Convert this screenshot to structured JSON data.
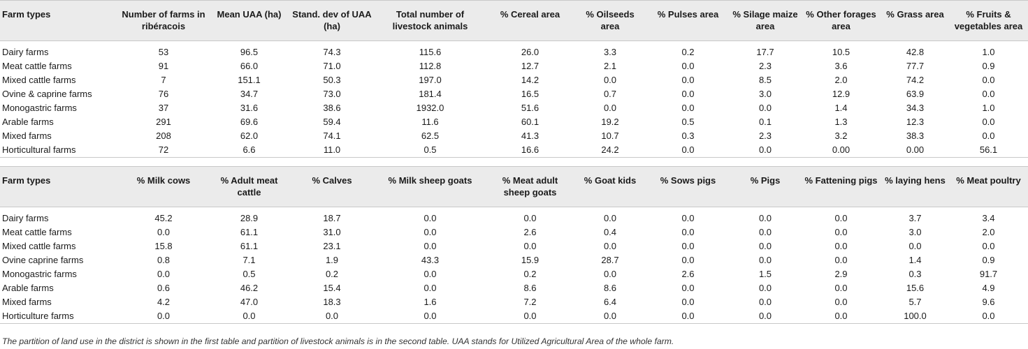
{
  "table1": {
    "headers": [
      "Farm types",
      "Number of farms in ribéracois",
      "Mean UAA (ha)",
      "Stand. dev of UAA (ha)",
      "Total number of livestock animals",
      "% Cereal area",
      "% Oilseeds area",
      "% Pulses area",
      "% Silage maize area",
      "% Other forages area",
      "% Grass area",
      "% Fruits & vegetables area"
    ],
    "rows": [
      [
        "Dairy farms",
        "53",
        "96.5",
        "74.3",
        "115.6",
        "26.0",
        "3.3",
        "0.2",
        "17.7",
        "10.5",
        "42.8",
        "1.0"
      ],
      [
        "Meat cattle farms",
        "91",
        "66.0",
        "71.0",
        "112.8",
        "12.7",
        "2.1",
        "0.0",
        "2.3",
        "3.6",
        "77.7",
        "0.9"
      ],
      [
        "Mixed cattle farms",
        "7",
        "151.1",
        "50.3",
        "197.0",
        "14.2",
        "0.0",
        "0.0",
        "8.5",
        "2.0",
        "74.2",
        "0.0"
      ],
      [
        "Ovine & caprine farms",
        "76",
        "34.7",
        "73.0",
        "181.4",
        "16.5",
        "0.7",
        "0.0",
        "3.0",
        "12.9",
        "63.9",
        "0.0"
      ],
      [
        "Monogastric farms",
        "37",
        "31.6",
        "38.6",
        "1932.0",
        "51.6",
        "0.0",
        "0.0",
        "0.0",
        "1.4",
        "34.3",
        "1.0"
      ],
      [
        "Arable farms",
        "291",
        "69.6",
        "59.4",
        "11.6",
        "60.1",
        "19.2",
        "0.5",
        "0.1",
        "1.3",
        "12.3",
        "0.0"
      ],
      [
        "Mixed farms",
        "208",
        "62.0",
        "74.1",
        "62.5",
        "41.3",
        "10.7",
        "0.3",
        "2.3",
        "3.2",
        "38.3",
        "0.0"
      ],
      [
        "Horticultural farms",
        "72",
        "6.6",
        "11.0",
        "0.5",
        "16.6",
        "24.2",
        "0.0",
        "0.0",
        "0.00",
        "0.00",
        "56.1"
      ]
    ]
  },
  "table2": {
    "headers": [
      "Farm types",
      "% Milk cows",
      "% Adult meat cattle",
      "% Calves",
      "% Milk sheep goats",
      "% Meat adult sheep goats",
      "% Goat kids",
      "% Sows pigs",
      "% Pigs",
      "% Fattening pigs",
      "% laying hens",
      "% Meat poultry"
    ],
    "rows": [
      [
        "Dairy farms",
        "45.2",
        "28.9",
        "18.7",
        "0.0",
        "0.0",
        "0.0",
        "0.0",
        "0.0",
        "0.0",
        "3.7",
        "3.4"
      ],
      [
        "Meat cattle farms",
        "0.0",
        "61.1",
        "31.0",
        "0.0",
        "2.6",
        "0.4",
        "0.0",
        "0.0",
        "0.0",
        "3.0",
        "2.0"
      ],
      [
        "Mixed cattle farms",
        "15.8",
        "61.1",
        "23.1",
        "0.0",
        "0.0",
        "0.0",
        "0.0",
        "0.0",
        "0.0",
        "0.0",
        "0.0"
      ],
      [
        "Ovine caprine farms",
        "0.8",
        "7.1",
        "1.9",
        "43.3",
        "15.9",
        "28.7",
        "0.0",
        "0.0",
        "0.0",
        "1.4",
        "0.9"
      ],
      [
        "Monogastric farms",
        "0.0",
        "0.5",
        "0.2",
        "0.0",
        "0.2",
        "0.0",
        "2.6",
        "1.5",
        "2.9",
        "0.3",
        "91.7"
      ],
      [
        "Arable farms",
        "0.6",
        "46.2",
        "15.4",
        "0.0",
        "8.6",
        "8.6",
        "0.0",
        "0.0",
        "0.0",
        "15.6",
        "4.9"
      ],
      [
        "Mixed farms",
        "4.2",
        "47.0",
        "18.3",
        "1.6",
        "7.2",
        "6.4",
        "0.0",
        "0.0",
        "0.0",
        "5.7",
        "9.6"
      ],
      [
        "Horticulture farms",
        "0.0",
        "0.0",
        "0.0",
        "0.0",
        "0.0",
        "0.0",
        "0.0",
        "0.0",
        "0.0",
        "100.0",
        "0.0"
      ]
    ]
  },
  "footnote": "The partition of land use in the district is shown in the first table and partition of livestock animals is in the second table. UAA stands for Utilized Agricultural Area of the whole farm."
}
